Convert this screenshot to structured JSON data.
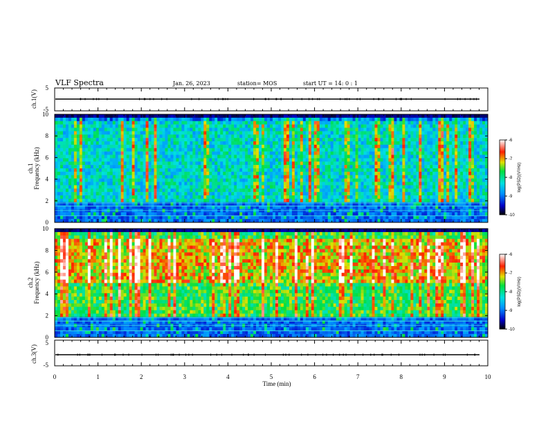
{
  "header": {
    "title": "VLF Spectra",
    "date": "Jan. 26, 2023",
    "station": "station= MOS",
    "start": "start UT =  14: 0 : 1"
  },
  "chart_data": [
    {
      "type": "line",
      "panel": "ch1_waveform",
      "ylabel": "ch.1(V)",
      "ylim": [
        -5,
        5
      ],
      "yticks": [
        "5",
        "-5"
      ],
      "x": [
        0,
        9.8
      ],
      "values": [
        0,
        0
      ]
    },
    {
      "type": "heatmap",
      "panel": "ch1_spectrogram",
      "ylabel_line1": "ch.1",
      "ylabel_line2": "Frequency (kHz)",
      "ylim": [
        0,
        10
      ],
      "yticks": [
        "0",
        "2",
        "4",
        "6",
        "8",
        "10"
      ],
      "xlim": [
        0,
        10
      ],
      "colorbar": {
        "label": "log(PSD)(V²/Hz)",
        "ticks": [
          "-6",
          "-7",
          "-8",
          "-9",
          "-10"
        ],
        "range": [
          -10,
          -6
        ]
      },
      "dominant_band_khz": [
        2,
        9.5
      ],
      "typical_log_psd": -8.3
    },
    {
      "type": "heatmap",
      "panel": "ch2_spectrogram",
      "ylabel_line1": "ch.2",
      "ylabel_line2": "Frequency (kHz)",
      "ylim": [
        0,
        10
      ],
      "yticks": [
        "0",
        "2",
        "4",
        "6",
        "8",
        "10"
      ],
      "xlim": [
        0,
        10
      ],
      "colorbar": {
        "label": "log(PSD)(V²/Hz)",
        "ticks": [
          "-6",
          "-7",
          "-8",
          "-9",
          "-10"
        ],
        "range": [
          -10,
          -6
        ]
      },
      "dominant_band_khz": [
        5,
        9
      ],
      "typical_log_psd": -7.1
    },
    {
      "type": "line",
      "panel": "ch3_waveform",
      "ylabel": "ch.3(V)",
      "ylim": [
        -5,
        5
      ],
      "yticks": [
        "5",
        "-5"
      ],
      "x": [
        0,
        9.8
      ],
      "values": [
        0,
        0
      ]
    }
  ],
  "xaxis": {
    "label": "Time (min)",
    "ticks": [
      "0",
      "1",
      "2",
      "3",
      "4",
      "5",
      "6",
      "7",
      "8",
      "9",
      "10"
    ],
    "range": [
      0,
      10
    ]
  }
}
